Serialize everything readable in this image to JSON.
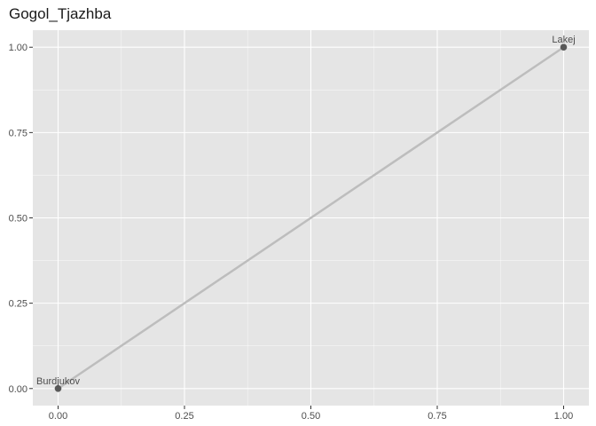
{
  "chart_data": {
    "type": "line",
    "title": "Gogol_Tjazhba",
    "xlabel": "",
    "ylabel": "",
    "xlim": [
      -0.05,
      1.05
    ],
    "ylim": [
      -0.05,
      1.05
    ],
    "x_ticks": [
      0.0,
      0.25,
      0.5,
      0.75,
      1.0
    ],
    "x_tick_labels": [
      "0.00",
      "0.25",
      "0.50",
      "0.75",
      "1.00"
    ],
    "y_ticks": [
      0.0,
      0.25,
      0.5,
      0.75,
      1.0
    ],
    "y_tick_labels": [
      "0.00",
      "0.25",
      "0.50",
      "0.75",
      "1.00"
    ],
    "grid": true,
    "points": [
      {
        "label": "Burdjukov",
        "x": 0.0,
        "y": 0.0
      },
      {
        "label": "Lakej",
        "x": 1.0,
        "y": 1.0
      }
    ],
    "colors": {
      "panel": "#e5e5e5",
      "grid_major": "#ffffff",
      "line": "#bdbdbd",
      "point": "#595959"
    }
  }
}
